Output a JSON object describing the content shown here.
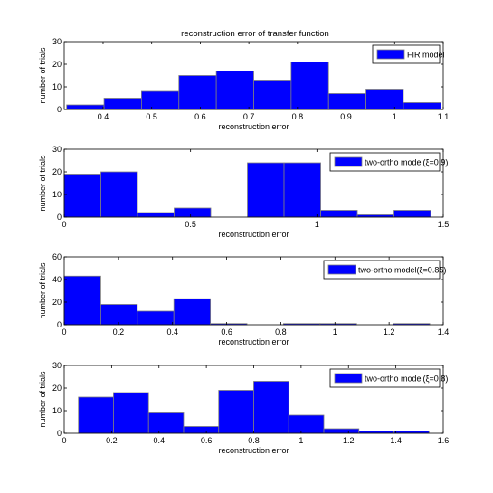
{
  "figure": {
    "title": "reconstruction error of transfer function"
  },
  "style": {
    "bar_fill": "#0000ff",
    "bar_stroke": "#7f7f7f",
    "axes_color": "#000000",
    "background": "#ffffff"
  },
  "chart_data": [
    {
      "type": "bar",
      "subtype": "histogram",
      "title": "reconstruction error of transfer function",
      "xlabel": "reconstruction error",
      "ylabel": "number of trials",
      "legend": "FIR model",
      "legend_position": "top-right",
      "xlim": [
        0.32,
        1.1
      ],
      "ylim": [
        0,
        30
      ],
      "xticks": [
        0.4,
        0.5,
        0.6,
        0.7,
        0.8,
        0.9,
        1,
        1.1
      ],
      "xtick_labels": [
        "0.4",
        "0.5",
        "0.6",
        "0.7",
        "0.8",
        "0.9",
        "1",
        "1.1"
      ],
      "yticks": [
        0,
        10,
        20,
        30
      ],
      "ytick_labels": [
        "0",
        "10",
        "20",
        "30"
      ],
      "bin_edges": [
        0.325,
        0.402,
        0.479,
        0.556,
        0.633,
        0.71,
        0.787,
        0.864,
        0.941,
        1.018,
        1.095
      ],
      "counts": [
        2,
        5,
        8,
        15,
        17,
        13,
        21,
        7,
        9,
        3
      ]
    },
    {
      "type": "bar",
      "subtype": "histogram",
      "xlabel": "reconstruction error",
      "ylabel": "number of trials",
      "legend": "two-ortho model(ξ=0.9)",
      "legend_position": "top-right",
      "xlim": [
        0,
        1.5
      ],
      "ylim": [
        0,
        30
      ],
      "xticks": [
        0,
        0.5,
        1,
        1.5
      ],
      "xtick_labels": [
        "0",
        "0.5",
        "1",
        "1.5"
      ],
      "yticks": [
        0,
        10,
        20,
        30
      ],
      "ytick_labels": [
        "0",
        "10",
        "20",
        "30"
      ],
      "bin_edges": [
        0,
        0.145,
        0.29,
        0.435,
        0.58,
        0.725,
        0.87,
        1.015,
        1.16,
        1.305,
        1.45
      ],
      "counts": [
        19,
        20,
        2,
        4,
        0,
        24,
        24,
        3,
        1,
        3
      ]
    },
    {
      "type": "bar",
      "subtype": "histogram",
      "xlabel": "reconstruction error",
      "ylabel": "number of trials",
      "legend": "two-ortho model(ξ=0.85)",
      "legend_position": "top-right",
      "xlim": [
        0,
        1.4
      ],
      "ylim": [
        0,
        60
      ],
      "xticks": [
        0,
        0.2,
        0.4,
        0.6,
        0.8,
        1,
        1.2,
        1.4
      ],
      "xtick_labels": [
        "0",
        "0.2",
        "0.4",
        "0.6",
        "0.8",
        "1",
        "1.2",
        "1.4"
      ],
      "yticks": [
        0,
        20,
        40,
        60
      ],
      "ytick_labels": [
        "0",
        "20",
        "40",
        "60"
      ],
      "bin_edges": [
        0,
        0.135,
        0.27,
        0.405,
        0.54,
        0.675,
        0.81,
        0.945,
        1.08,
        1.215,
        1.35
      ],
      "counts": [
        43,
        18,
        12,
        23,
        1,
        0,
        1,
        1,
        0,
        1
      ]
    },
    {
      "type": "bar",
      "subtype": "histogram",
      "xlabel": "reconstruction error",
      "ylabel": "number of trials",
      "legend": "two-ortho model(ξ=0.8)",
      "legend_position": "top-right",
      "xlim": [
        0,
        1.6
      ],
      "ylim": [
        0,
        30
      ],
      "xticks": [
        0,
        0.2,
        0.4,
        0.6,
        0.8,
        1,
        1.2,
        1.4,
        1.6
      ],
      "xtick_labels": [
        "0",
        "0.2",
        "0.4",
        "0.6",
        "0.8",
        "1",
        "1.2",
        "1.4",
        "1.6"
      ],
      "yticks": [
        0,
        10,
        20,
        30
      ],
      "ytick_labels": [
        "0",
        "10",
        "20",
        "30"
      ],
      "bin_edges": [
        0.06,
        0.208,
        0.356,
        0.504,
        0.652,
        0.8,
        0.948,
        1.096,
        1.244,
        1.392,
        1.54
      ],
      "counts": [
        16,
        18,
        9,
        3,
        19,
        23,
        8,
        2,
        1,
        1
      ]
    }
  ]
}
